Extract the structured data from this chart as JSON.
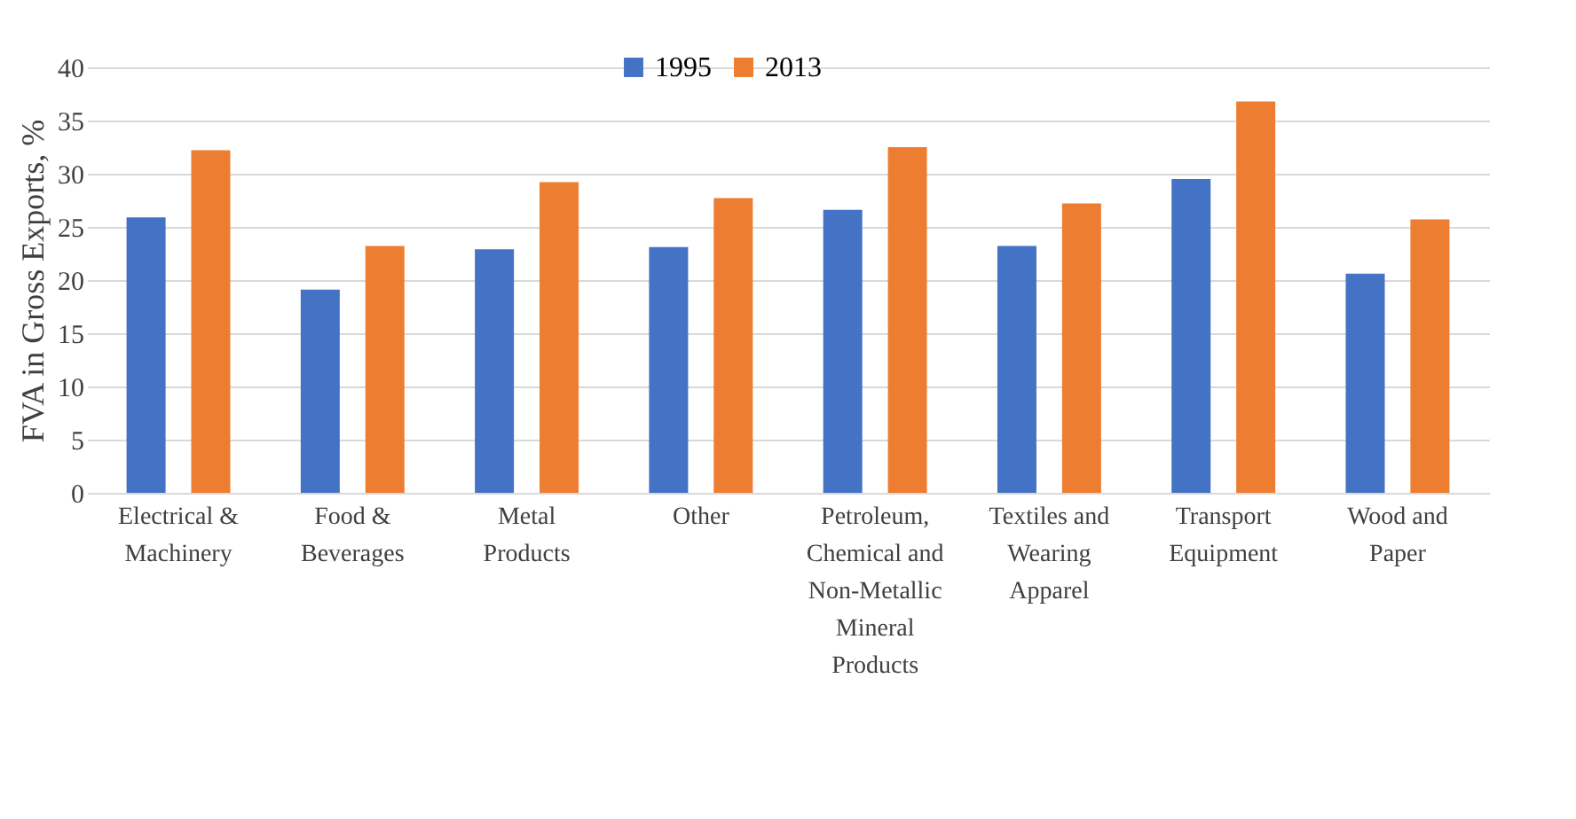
{
  "chart_data": {
    "type": "bar",
    "ylabel": "FVA in Gross Exports, %",
    "categories": [
      "Electrical & Machinery",
      "Food & Beverages",
      "Metal Products",
      "Other",
      "Petroleum, Chemical and Non-Metallic Mineral Products",
      "Textiles and Wearing Apparel",
      "Transport Equipment",
      "Wood and Paper"
    ],
    "series": [
      {
        "name": "1995",
        "color": "#4472c4",
        "values": [
          25.9,
          19.1,
          22.9,
          23.1,
          26.6,
          23.2,
          29.5,
          20.6
        ]
      },
      {
        "name": "2013",
        "color": "#ed7d31",
        "values": [
          32.2,
          23.2,
          29.2,
          27.7,
          32.5,
          27.2,
          36.8,
          25.7
        ]
      }
    ],
    "ylim": [
      0,
      40
    ],
    "yticks": [
      0,
      5,
      10,
      15,
      20,
      25,
      30,
      35,
      40
    ],
    "grid": "y",
    "legend": "top"
  }
}
